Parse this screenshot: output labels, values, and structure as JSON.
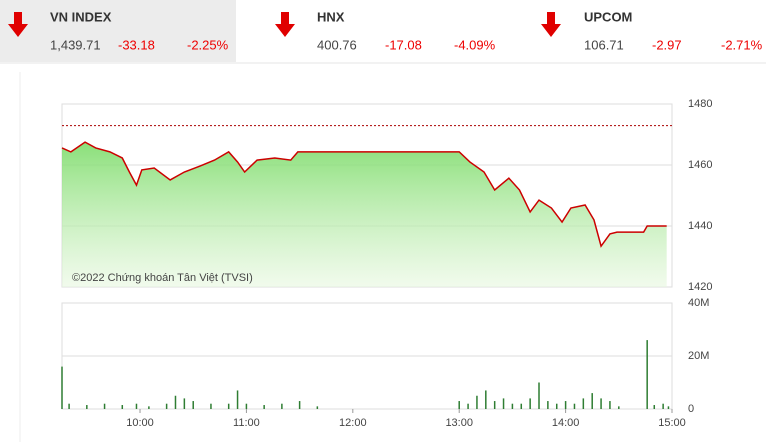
{
  "indices": [
    {
      "name": "VN INDEX",
      "value": "1,439.71",
      "change": "-33.18",
      "percent": "-2.25%"
    },
    {
      "name": "HNX",
      "value": "400.76",
      "change": "-17.08",
      "percent": "-4.09%"
    },
    {
      "name": "UPCOM",
      "value": "106.71",
      "change": "-2.97",
      "percent": "-2.71%"
    }
  ],
  "chart_data": [
    {
      "type": "line",
      "annotation": "©2022 Chứng khoán Tân Việt (TVSI)",
      "x": [
        556,
        561,
        569,
        575,
        583,
        590,
        594,
        598,
        601,
        608,
        617,
        625,
        634,
        642,
        650,
        655,
        659,
        666,
        676,
        685,
        689,
        780,
        786,
        794,
        800,
        808,
        814,
        820,
        825,
        832,
        838,
        843,
        851,
        856,
        860,
        865,
        869,
        884,
        886,
        897
      ],
      "series": [
        {
          "color": "#cc0000",
          "values": [
            1465.6,
            1464.3,
            1467.5,
            1465.6,
            1464.3,
            1462.3,
            1457.7,
            1453.4,
            1458.4,
            1459.0,
            1455.1,
            1457.7,
            1459.7,
            1461.6,
            1464.3,
            1461.0,
            1457.7,
            1461.6,
            1462.3,
            1461.6,
            1464.3,
            1464.3,
            1461.0,
            1457.7,
            1451.8,
            1455.7,
            1451.8,
            1444.6,
            1448.5,
            1445.9,
            1441.3,
            1445.9,
            1446.9,
            1442.0,
            1433.4,
            1437.4,
            1438.0,
            1438.0,
            1440.0,
            1440.0
          ]
        }
      ],
      "reference": 1472.89,
      "xlim": [
        556,
        900
      ],
      "ylim": [
        1420,
        1480
      ],
      "yticks": [
        1420,
        1440,
        1460,
        1480
      ],
      "grid": true
    },
    {
      "type": "bar",
      "x": [
        556,
        560,
        570,
        580,
        590,
        598,
        605,
        615,
        620,
        625,
        630,
        640,
        650,
        655,
        660,
        670,
        680,
        690,
        700,
        780,
        785,
        790,
        795,
        800,
        805,
        810,
        815,
        820,
        825,
        830,
        835,
        840,
        845,
        850,
        855,
        860,
        865,
        870,
        886,
        890,
        895,
        898
      ],
      "series": [
        {
          "color": "#2e7d32",
          "values": [
            16,
            2,
            1.5,
            2,
            1.5,
            2,
            1,
            2,
            5,
            4,
            3,
            2,
            2,
            7,
            2,
            1.5,
            2,
            3,
            1,
            3,
            2,
            5,
            7,
            3,
            4,
            2,
            2,
            4,
            10,
            3,
            2,
            3,
            2,
            4,
            6,
            4,
            3,
            1,
            26,
            1.5,
            2,
            1
          ]
        }
      ],
      "xlim": [
        556,
        900
      ],
      "ylim": [
        0,
        40
      ],
      "yticks": [
        0,
        {
          "value": 20,
          "label": "20M"
        },
        {
          "value": 40,
          "label": "40M"
        }
      ],
      "xticks": [
        {
          "value": 600,
          "label": "10:00"
        },
        {
          "value": 660,
          "label": "11:00"
        },
        {
          "value": 720,
          "label": "12:00"
        },
        {
          "value": 780,
          "label": "13:00"
        },
        {
          "value": 840,
          "label": "14:00"
        },
        {
          "value": 900,
          "label": "15:00"
        }
      ],
      "grid": true
    }
  ]
}
